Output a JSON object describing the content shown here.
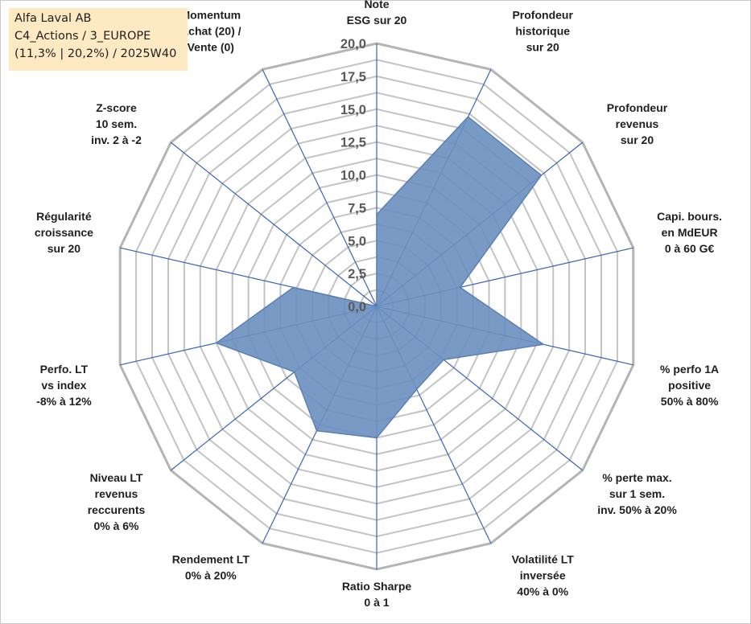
{
  "title_box": {
    "line1": "Alfa Laval AB",
    "line2": "C4_Actions / 3_EUROPE",
    "line3": "(11,3% | 20,2%) / 2025W40"
  },
  "chart_data": {
    "type": "radar",
    "rlim": [
      0,
      20
    ],
    "ticks": [
      "0,0",
      "2,5",
      "5,0",
      "7,5",
      "10,0",
      "12,5",
      "15,0",
      "17,5",
      "20,0"
    ],
    "axes": [
      "Note\nESG sur 20",
      "Profondeur\nhistorique\nsur 20",
      "Profondeur\nrevenus\nsur 20",
      "Capi. bours.\nen MdEUR\n0 à 60 G€",
      "% perfo 1A\npositive\n50% à 80%",
      "% perte max.\nsur 1 sem.\ninv. 50% à 20%",
      "Volatilité LT\ninversée\n40% à 0%",
      "Ratio Sharpe\n0 à 1",
      "Rendement LT\n0% à 20%",
      "Niveau LT\nrevenus\nreccurents\n0% à 6%",
      "Perfo. LT\nvs index\n-8% à 12%",
      "Régularité\ncroissance\nsur 20",
      "Z-score\n10 sem.\ninv. 2 à -2",
      "Momentum\nAchat (20) /\nVente (0)"
    ],
    "values": [
      7,
      16,
      16,
      6.5,
      13,
      6.5,
      7,
      10,
      10.5,
      8,
      12.5,
      6.5,
      0,
      0
    ],
    "grid": true,
    "colors": {
      "fill": "#6b8fc0",
      "stroke": "#5a7fb5",
      "spoke": "#3a64b4",
      "grid": "#c3c3c3",
      "outer": "#b4b4b4"
    }
  }
}
